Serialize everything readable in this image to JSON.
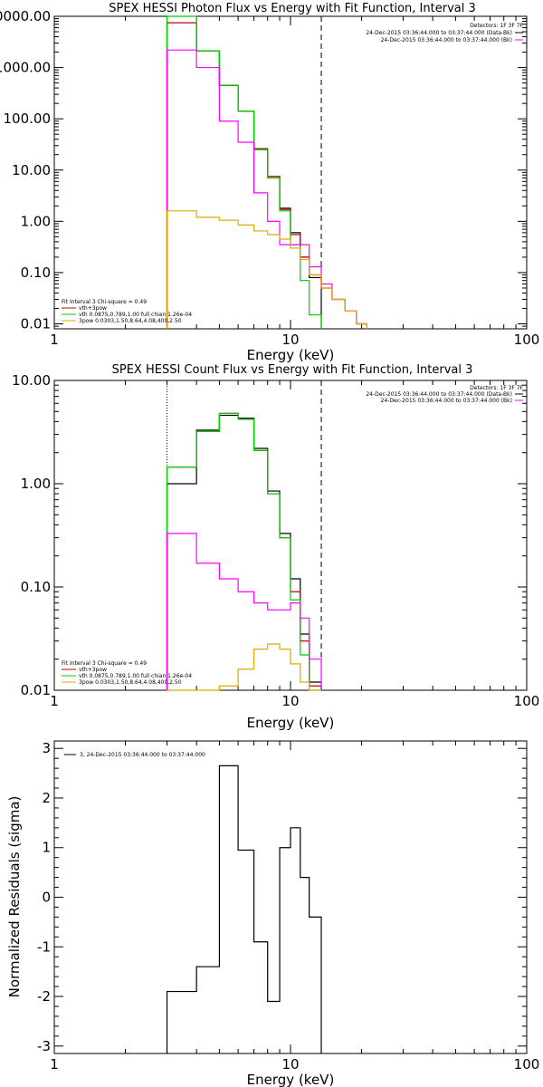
{
  "chart_data": [
    {
      "type": "line",
      "title": "SPEX HESSI Photon Flux vs Energy with Fit Function, Interval 3",
      "xlabel": "Energy (keV)",
      "ylabel": "",
      "xscale": "log",
      "yscale": "log",
      "xlim": [
        1,
        100
      ],
      "ylim": [
        0.008,
        10000
      ],
      "x_ticks": [
        {
          "value": 1,
          "label": "1"
        },
        {
          "value": 10,
          "label": "10"
        },
        {
          "value": 100,
          "label": "100"
        }
      ],
      "y_ticks": [
        {
          "value": 10000,
          "label": "10000.00"
        },
        {
          "value": 1000,
          "label": "1000.00"
        },
        {
          "value": 100,
          "label": "100.00"
        },
        {
          "value": 10,
          "label": "10.00"
        },
        {
          "value": 1,
          "label": "1.00"
        },
        {
          "value": 0.1,
          "label": "0.10"
        },
        {
          "value": 0.01,
          "label": "0.01"
        }
      ],
      "vlines": [
        {
          "x": 3,
          "style": "dotted",
          "color": "#000000"
        },
        {
          "x": 13.5,
          "style": "dashed",
          "color": "#000000"
        }
      ],
      "header_text": [
        "Detectors: 1F 3F 7F",
        "24-Dec-2015 03:36:44.000 to 03:37:44.000 (Data-Bk)",
        "24-Dec-2015 03:36:44.000 to 03:37:44.000 (Bk)"
      ],
      "fit_text": [
        "Fit Interval 3   Chi-square = 0.49",
        "vth+3pow",
        "vth 0.0875,0.789,1.00  full chian 1.26e-04",
        "3pow 0.0303,1.50,8.64,4.08,400,2.50"
      ],
      "bin_edges": [
        3,
        4,
        5,
        6,
        7,
        8,
        9,
        10,
        11,
        12,
        13.5,
        15,
        17,
        19,
        21
      ],
      "series": [
        {
          "color": "#000000",
          "values": [
            7500,
            2100,
            450,
            140,
            26,
            7.5,
            1.8,
            0.6,
            0.2,
            0.08,
            null,
            null,
            null,
            null
          ],
          "role": "data"
        },
        {
          "color": "#cc0000",
          "values": [
            7500,
            2100,
            450,
            140,
            26,
            7.5,
            1.7,
            0.55,
            0.2,
            0.09,
            0.05,
            0.03,
            0.018,
            0.01
          ],
          "role": "fit-total"
        },
        {
          "color": "#00cc00",
          "values": [
            10000,
            2100,
            450,
            140,
            25,
            7,
            1.6,
            0.35,
            0.07,
            0.015,
            null,
            null,
            null,
            null
          ],
          "role": "vth"
        },
        {
          "color": "#ff00ff",
          "values": [
            2200,
            1000,
            90,
            35,
            3.6,
            1.0,
            0.35,
            0.35,
            0.35,
            0.13,
            0.06,
            0.03,
            0.018,
            0.01
          ],
          "role": "3pow-a"
        },
        {
          "color": "#ddaa00",
          "values": [
            1.6,
            1.2,
            1.05,
            0.85,
            0.65,
            0.55,
            0.45,
            0.3,
            0.18,
            0.09,
            0.05,
            0.03,
            0.018,
            0.01
          ],
          "role": "3pow"
        }
      ]
    },
    {
      "type": "line",
      "title": "SPEX HESSI Count Flux vs Energy with Fit Function, Interval 3",
      "xlabel": "Energy (keV)",
      "ylabel": "",
      "xscale": "log",
      "yscale": "log",
      "xlim": [
        1,
        100
      ],
      "ylim": [
        0.01,
        10
      ],
      "x_ticks": [
        {
          "value": 1,
          "label": "1"
        },
        {
          "value": 10,
          "label": "10"
        },
        {
          "value": 100,
          "label": "100"
        }
      ],
      "y_ticks": [
        {
          "value": 10,
          "label": "10.00"
        },
        {
          "value": 1,
          "label": "1.00"
        },
        {
          "value": 0.1,
          "label": "0.10"
        },
        {
          "value": 0.01,
          "label": "0.01"
        }
      ],
      "vlines": [
        {
          "x": 3,
          "style": "dotted",
          "color": "#000000"
        },
        {
          "x": 13.5,
          "style": "dashed",
          "color": "#000000"
        }
      ],
      "header_text": [
        "Detectors: 1F 3F 7F",
        "24-Dec-2015 03:36:44.000 to 03:37:44.000 (Data-Bk)",
        "24-Dec-2015 03:36:44.000 to 03:37:44.000 (Bk)"
      ],
      "fit_text": [
        "Fit Interval 3   Chi-square = 0.49",
        "vth+3pow",
        "vth 0.0875,0.789,1.00  full chian 1.26e-04",
        "3pow 0.0303,1.50,8.64,4.08,400,2.50"
      ],
      "bin_edges": [
        3,
        4,
        5,
        6,
        7,
        8,
        9,
        10,
        11,
        12,
        13.5
      ],
      "series": [
        {
          "color": "#000000",
          "values": [
            1.0,
            3.3,
            4.6,
            4.3,
            2.2,
            0.85,
            0.33,
            0.12,
            0.035,
            0.012
          ],
          "role": "data"
        },
        {
          "color": "#cc0000",
          "values": [
            1.45,
            3.2,
            4.8,
            4.2,
            2.1,
            0.8,
            0.3,
            0.09,
            0.03,
            0.011
          ],
          "role": "fit-total"
        },
        {
          "color": "#00cc00",
          "values": [
            1.45,
            3.2,
            4.8,
            4.2,
            2.1,
            0.8,
            0.3,
            0.075,
            0.022,
            0.009
          ],
          "role": "vth"
        },
        {
          "color": "#ff00ff",
          "values": [
            0.33,
            0.17,
            0.12,
            0.09,
            0.07,
            0.06,
            0.06,
            0.07,
            0.05,
            0.02
          ],
          "role": "3pow-a"
        },
        {
          "color": "#ddaa00",
          "values": [
            0.009,
            0.009,
            0.011,
            0.016,
            0.025,
            0.028,
            0.025,
            0.018,
            0.012,
            0.009
          ],
          "role": "3pow"
        }
      ]
    },
    {
      "type": "line",
      "title": "",
      "xlabel": "Energy (keV)",
      "ylabel": "Normalized Residuals (sigma)",
      "xscale": "log",
      "yscale": "linear",
      "xlim": [
        1,
        100
      ],
      "ylim": [
        -3.15,
        3.15
      ],
      "x_ticks": [
        {
          "value": 1,
          "label": "1"
        },
        {
          "value": 10,
          "label": "10"
        },
        {
          "value": 100,
          "label": "100"
        }
      ],
      "y_ticks": [
        {
          "value": 3,
          "label": "3"
        },
        {
          "value": 2,
          "label": "2"
        },
        {
          "value": 1,
          "label": "1"
        },
        {
          "value": 0,
          "label": "0"
        },
        {
          "value": -1,
          "label": "-1"
        },
        {
          "value": -2,
          "label": "-2"
        },
        {
          "value": -3,
          "label": "-3"
        }
      ],
      "legend": "3, 24-Dec-2015 03:36:44.000 to 03:37:44.000",
      "bin_edges": [
        3,
        4,
        5,
        6,
        7,
        8,
        9,
        10,
        11,
        12,
        13.5
      ],
      "series": [
        {
          "color": "#000000",
          "values": [
            -1.9,
            -1.4,
            2.65,
            0.95,
            -0.9,
            -2.1,
            1.0,
            1.4,
            0.4,
            -0.4
          ]
        }
      ]
    }
  ]
}
